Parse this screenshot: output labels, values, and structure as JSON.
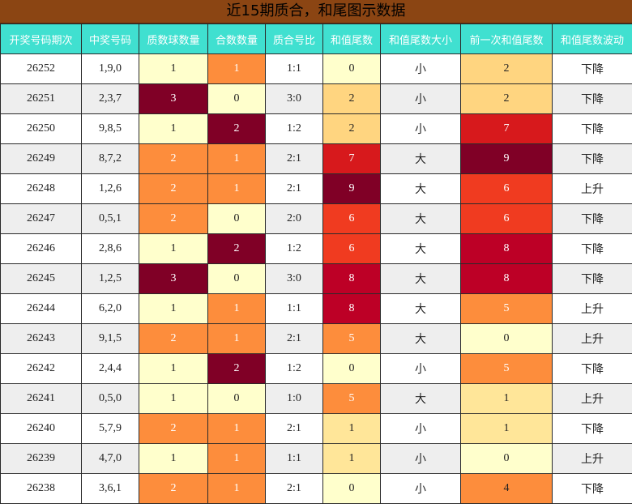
{
  "title": "近15期质合，和尾图示数据",
  "columns": [
    "开奖号码期次",
    "中奖号码",
    "质数球数量",
    "合数数量",
    "质合号比",
    "和值尾数",
    "和值尾数大小",
    "前一次和值尾数",
    "和值尾数波动"
  ],
  "palette": {
    "header_bg": "#40e0d0",
    "title_bg": "#8b4513",
    "heat_0": "#ffffcc",
    "heat_1": "#ffe699",
    "heat_2": "#ffd580",
    "heat_3": "#fd8d3c",
    "heat_4": "#f03b20",
    "heat_5": "#d7191c",
    "heat_6": "#bd0026",
    "heat_7": "#800026"
  },
  "rows": [
    {
      "issue": "26252",
      "numbers": "1,9,0",
      "prime_count": "1",
      "composite_count": "1",
      "ratio": "1:1",
      "sum_tail": "0",
      "size": "小",
      "prev_tail": "2",
      "trend": "下降"
    },
    {
      "issue": "26251",
      "numbers": "2,3,7",
      "prime_count": "3",
      "composite_count": "0",
      "ratio": "3:0",
      "sum_tail": "2",
      "size": "小",
      "prev_tail": "2",
      "trend": "下降"
    },
    {
      "issue": "26250",
      "numbers": "9,8,5",
      "prime_count": "1",
      "composite_count": "2",
      "ratio": "1:2",
      "sum_tail": "2",
      "size": "小",
      "prev_tail": "7",
      "trend": "下降"
    },
    {
      "issue": "26249",
      "numbers": "8,7,2",
      "prime_count": "2",
      "composite_count": "1",
      "ratio": "2:1",
      "sum_tail": "7",
      "size": "大",
      "prev_tail": "9",
      "trend": "下降"
    },
    {
      "issue": "26248",
      "numbers": "1,2,6",
      "prime_count": "2",
      "composite_count": "1",
      "ratio": "2:1",
      "sum_tail": "9",
      "size": "大",
      "prev_tail": "6",
      "trend": "上升"
    },
    {
      "issue": "26247",
      "numbers": "0,5,1",
      "prime_count": "2",
      "composite_count": "0",
      "ratio": "2:0",
      "sum_tail": "6",
      "size": "大",
      "prev_tail": "6",
      "trend": "下降"
    },
    {
      "issue": "26246",
      "numbers": "2,8,6",
      "prime_count": "1",
      "composite_count": "2",
      "ratio": "1:2",
      "sum_tail": "6",
      "size": "大",
      "prev_tail": "8",
      "trend": "下降"
    },
    {
      "issue": "26245",
      "numbers": "1,2,5",
      "prime_count": "3",
      "composite_count": "0",
      "ratio": "3:0",
      "sum_tail": "8",
      "size": "大",
      "prev_tail": "8",
      "trend": "下降"
    },
    {
      "issue": "26244",
      "numbers": "6,2,0",
      "prime_count": "1",
      "composite_count": "1",
      "ratio": "1:1",
      "sum_tail": "8",
      "size": "大",
      "prev_tail": "5",
      "trend": "上升"
    },
    {
      "issue": "26243",
      "numbers": "9,1,5",
      "prime_count": "2",
      "composite_count": "1",
      "ratio": "2:1",
      "sum_tail": "5",
      "size": "大",
      "prev_tail": "0",
      "trend": "上升"
    },
    {
      "issue": "26242",
      "numbers": "2,4,4",
      "prime_count": "1",
      "composite_count": "2",
      "ratio": "1:2",
      "sum_tail": "0",
      "size": "小",
      "prev_tail": "5",
      "trend": "下降"
    },
    {
      "issue": "26241",
      "numbers": "0,5,0",
      "prime_count": "1",
      "composite_count": "0",
      "ratio": "1:0",
      "sum_tail": "5",
      "size": "大",
      "prev_tail": "1",
      "trend": "上升"
    },
    {
      "issue": "26240",
      "numbers": "5,7,9",
      "prime_count": "2",
      "composite_count": "1",
      "ratio": "2:1",
      "sum_tail": "1",
      "size": "小",
      "prev_tail": "1",
      "trend": "下降"
    },
    {
      "issue": "26239",
      "numbers": "4,7,0",
      "prime_count": "1",
      "composite_count": "1",
      "ratio": "1:1",
      "sum_tail": "1",
      "size": "小",
      "prev_tail": "0",
      "trend": "上升"
    },
    {
      "issue": "26238",
      "numbers": "3,6,1",
      "prime_count": "2",
      "composite_count": "1",
      "ratio": "2:1",
      "sum_tail": "0",
      "size": "小",
      "prev_tail": "4",
      "trend": "下降"
    }
  ]
}
